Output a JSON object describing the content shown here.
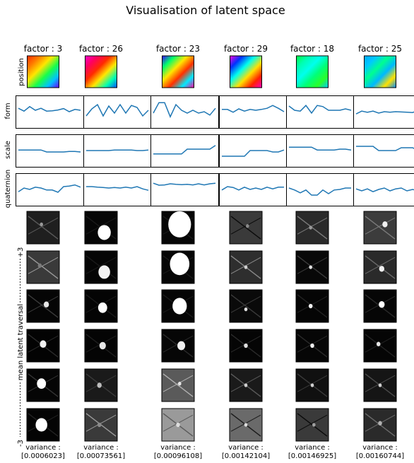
{
  "chart_data": {
    "type": "line",
    "title": "Visualisation of latent space",
    "columns": [
      {
        "factor_label": "factor : 3",
        "variance_label": "variance :",
        "variance_value": "[0.0006023]"
      },
      {
        "factor_label": "factor : 26",
        "variance_label": "variance :",
        "variance_value": "[0.00073561]"
      },
      {
        "factor_label": "factor : 23",
        "variance_label": "variance :",
        "variance_value": "[0.00096108]"
      },
      {
        "factor_label": "factor : 29",
        "variance_label": "variance :",
        "variance_value": "[0.00142104]"
      },
      {
        "factor_label": "factor : 18",
        "variance_label": "variance :",
        "variance_value": "[0.00146925]"
      },
      {
        "factor_label": "factor : 25",
        "variance_label": "variance :",
        "variance_value": "[0.00160744]"
      }
    ],
    "row_labels": {
      "position": "position",
      "form": "form",
      "scale": "scale",
      "quaternion": "quaternion"
    },
    "traversal": {
      "plus": "+3",
      "minus": "-3",
      "label": "mean latent traversal"
    },
    "line_color": "#1f77b4",
    "line_ylim": [
      0,
      1
    ],
    "form_series": [
      [
        0.62,
        0.52,
        0.68,
        0.55,
        0.62,
        0.52,
        0.53,
        0.56,
        0.61,
        0.5,
        0.58,
        0.55
      ],
      [
        0.35,
        0.6,
        0.75,
        0.35,
        0.7,
        0.45,
        0.75,
        0.45,
        0.72,
        0.65,
        0.35,
        0.55
      ],
      [
        0.45,
        0.82,
        0.82,
        0.32,
        0.75,
        0.55,
        0.45,
        0.55,
        0.45,
        0.5,
        0.38,
        0.62
      ],
      [
        0.58,
        0.58,
        0.48,
        0.6,
        0.52,
        0.58,
        0.55,
        0.58,
        0.62,
        0.72,
        0.62,
        0.5
      ],
      [
        0.7,
        0.55,
        0.52,
        0.72,
        0.45,
        0.72,
        0.68,
        0.55,
        0.55,
        0.55,
        0.6,
        0.55
      ],
      [
        0.42,
        0.52,
        0.48,
        0.52,
        0.45,
        0.5,
        0.48,
        0.5,
        0.49,
        0.48,
        0.47,
        0.55
      ]
    ],
    "scale_series": [
      [
        0.52,
        0.52,
        0.52,
        0.52,
        0.52,
        0.45,
        0.45,
        0.45,
        0.45,
        0.47,
        0.47,
        0.45
      ],
      [
        0.5,
        0.5,
        0.5,
        0.5,
        0.5,
        0.52,
        0.52,
        0.52,
        0.52,
        0.5,
        0.5,
        0.52
      ],
      [
        0.38,
        0.38,
        0.38,
        0.38,
        0.38,
        0.38,
        0.55,
        0.55,
        0.55,
        0.55,
        0.55,
        0.68
      ],
      [
        0.3,
        0.3,
        0.3,
        0.3,
        0.3,
        0.5,
        0.5,
        0.5,
        0.5,
        0.45,
        0.45,
        0.52
      ],
      [
        0.62,
        0.62,
        0.62,
        0.62,
        0.62,
        0.52,
        0.52,
        0.52,
        0.52,
        0.55,
        0.55,
        0.52
      ],
      [
        0.65,
        0.65,
        0.65,
        0.65,
        0.5,
        0.5,
        0.5,
        0.5,
        0.6,
        0.6,
        0.6,
        0.5
      ]
    ],
    "quaternion_series": [
      [
        0.42,
        0.55,
        0.5,
        0.58,
        0.55,
        0.48,
        0.48,
        0.4,
        0.6,
        0.62,
        0.66,
        0.58
      ],
      [
        0.6,
        0.6,
        0.58,
        0.57,
        0.55,
        0.57,
        0.55,
        0.58,
        0.55,
        0.6,
        0.52,
        0.47
      ],
      [
        0.72,
        0.65,
        0.66,
        0.7,
        0.68,
        0.67,
        0.68,
        0.66,
        0.7,
        0.66,
        0.7,
        0.72
      ],
      [
        0.48,
        0.6,
        0.57,
        0.48,
        0.58,
        0.5,
        0.55,
        0.5,
        0.58,
        0.52,
        0.58,
        0.58
      ],
      [
        0.55,
        0.48,
        0.38,
        0.48,
        0.3,
        0.3,
        0.48,
        0.35,
        0.48,
        0.5,
        0.55,
        0.55
      ],
      [
        0.52,
        0.45,
        0.52,
        0.42,
        0.5,
        0.55,
        0.45,
        0.52,
        0.55,
        0.45,
        0.5,
        0.45
      ]
    ],
    "position_maps": [
      [
        "#ff2a00",
        "#ff7a00",
        "#ffe600",
        "#18ff4a",
        "#00c2ff",
        "#6a00ff"
      ],
      [
        "#ff00d0",
        "#ff0060",
        "#ff2a00",
        "#ffe600",
        "#00ffb0",
        "#0050ff"
      ],
      [
        "#3a00ff",
        "#00ff6a",
        "#ffe600",
        "#ff3000",
        "#00eaff",
        "#ff00a0"
      ],
      [
        "#ff00e0",
        "#0030ff",
        "#00ffee",
        "#ffe000",
        "#ff2000",
        "#ff00c0"
      ],
      [
        "#00ff40",
        "#00ffb0",
        "#00ffee",
        "#00ff7a",
        "#2aff2a",
        "#00c8ff"
      ],
      [
        "#00aaff",
        "#00c8ff",
        "#00ff90",
        "#00b8ff",
        "#ffe000",
        "#008aff"
      ]
    ],
    "traversal_images": [
      [
        {
          "bg": "#1f1f1f",
          "blob": "#9a9a9a",
          "blob_r": 0.05,
          "cx": 0.45,
          "cy": 0.4,
          "streak": "#5a5a5a"
        },
        {
          "bg": "#3a3a3a",
          "blob": "#7c7c7c",
          "blob_r": 0.06,
          "cx": 0.4,
          "cy": 0.45,
          "streak": "#9a9a9a"
        },
        {
          "bg": "#050505",
          "blob": "#e6e6e6",
          "blob_r": 0.08,
          "cx": 0.6,
          "cy": 0.45,
          "streak": "#3a3a3a"
        },
        {
          "bg": "#030303",
          "blob": "#f2f2f2",
          "blob_r": 0.1,
          "cx": 0.5,
          "cy": 0.45,
          "streak": "#2a2a2a"
        },
        {
          "bg": "#050505",
          "blob": "#ffffff",
          "blob_r": 0.14,
          "cx": 0.45,
          "cy": 0.45,
          "streak": "#333333"
        },
        {
          "bg": "#040404",
          "blob": "#ffffff",
          "blob_r": 0.18,
          "cx": 0.45,
          "cy": 0.5,
          "streak": "#222222"
        }
      ],
      [
        {
          "bg": "#060606",
          "blob": "#ffffff",
          "blob_r": 0.2,
          "cx": 0.6,
          "cy": 0.65,
          "streak": "#1a1a1a"
        },
        {
          "bg": "#050505",
          "blob": "#f2f2f2",
          "blob_r": 0.18,
          "cx": 0.6,
          "cy": 0.65,
          "streak": "#1a1a1a"
        },
        {
          "bg": "#040404",
          "blob": "#ffffff",
          "blob_r": 0.14,
          "cx": 0.55,
          "cy": 0.55,
          "streak": "#1a1a1a"
        },
        {
          "bg": "#040404",
          "blob": "#e6e6e6",
          "blob_r": 0.1,
          "cx": 0.55,
          "cy": 0.5,
          "streak": "#1e1e1e"
        },
        {
          "bg": "#1a1a1a",
          "blob": "#bdbdbd",
          "blob_r": 0.07,
          "cx": 0.45,
          "cy": 0.5,
          "streak": "#3a3a3a"
        },
        {
          "bg": "#3a3a3a",
          "blob": "#8a8a8a",
          "blob_r": 0.06,
          "cx": 0.45,
          "cy": 0.5,
          "streak": "#9a9a9a"
        }
      ],
      [
        {
          "bg": "#060606",
          "blob": "#ffffff",
          "blob_r": 0.35,
          "cx": 0.55,
          "cy": 0.4,
          "streak": "#1a1a1a"
        },
        {
          "bg": "#060606",
          "blob": "#ffffff",
          "blob_r": 0.3,
          "cx": 0.55,
          "cy": 0.4,
          "streak": "#1a1a1a"
        },
        {
          "bg": "#050505",
          "blob": "#ffffff",
          "blob_r": 0.22,
          "cx": 0.55,
          "cy": 0.5,
          "streak": "#1a1a1a"
        },
        {
          "bg": "#060606",
          "blob": "#f0f0f0",
          "blob_r": 0.12,
          "cx": 0.6,
          "cy": 0.5,
          "streak": "#2a2a2a"
        },
        {
          "bg": "#5a5a5a",
          "blob": "#e6e6e6",
          "blob_r": 0.05,
          "cx": 0.55,
          "cy": 0.45,
          "streak": "#b0b0b0"
        },
        {
          "bg": "#9a9a9a",
          "blob": "#dcdcdc",
          "blob_r": 0.06,
          "cx": 0.5,
          "cy": 0.5,
          "streak": "#5a5a5a"
        }
      ],
      [
        {
          "bg": "#3a3a3a",
          "blob": "#8a8a8a",
          "blob_r": 0.05,
          "cx": 0.55,
          "cy": 0.45,
          "streak": "#0a0a0a"
        },
        {
          "bg": "#2e2e2e",
          "blob": "#d0d0d0",
          "blob_r": 0.05,
          "cx": 0.5,
          "cy": 0.5,
          "streak": "#8a8a8a"
        },
        {
          "bg": "#0a0a0a",
          "blob": "#e0e0e0",
          "blob_r": 0.05,
          "cx": 0.5,
          "cy": 0.6,
          "streak": "#3a3a3a"
        },
        {
          "bg": "#050505",
          "blob": "#e0e0e0",
          "blob_r": 0.06,
          "cx": 0.5,
          "cy": 0.5,
          "streak": "#2a2a2a"
        },
        {
          "bg": "#1a1a1a",
          "blob": "#d0d0d0",
          "blob_r": 0.05,
          "cx": 0.5,
          "cy": 0.5,
          "streak": "#5a5a5a"
        },
        {
          "bg": "#6a6a6a",
          "blob": "#dcdcdc",
          "blob_r": 0.05,
          "cx": 0.5,
          "cy": 0.5,
          "streak": "#1a1a1a"
        }
      ],
      [
        {
          "bg": "#2a2a2a",
          "blob": "#9a9a9a",
          "blob_r": 0.05,
          "cx": 0.45,
          "cy": 0.5,
          "streak": "#7a7a7a"
        },
        {
          "bg": "#080808",
          "blob": "#e0e0e0",
          "blob_r": 0.05,
          "cx": 0.45,
          "cy": 0.5,
          "streak": "#3a3a3a"
        },
        {
          "bg": "#050505",
          "blob": "#f0f0f0",
          "blob_r": 0.06,
          "cx": 0.45,
          "cy": 0.5,
          "streak": "#222222"
        },
        {
          "bg": "#060606",
          "blob": "#f0f0f0",
          "blob_r": 0.06,
          "cx": 0.5,
          "cy": 0.5,
          "streak": "#2a2a2a"
        },
        {
          "bg": "#101010",
          "blob": "#d0d0d0",
          "blob_r": 0.05,
          "cx": 0.5,
          "cy": 0.5,
          "streak": "#3a3a3a"
        },
        {
          "bg": "#3a3a3a",
          "blob": "#a0a0a0",
          "blob_r": 0.05,
          "cx": 0.55,
          "cy": 0.5,
          "streak": "#0a0a0a"
        }
      ],
      [
        {
          "bg": "#3c3c3c",
          "blob": "#f0f0f0",
          "blob_r": 0.08,
          "cx": 0.65,
          "cy": 0.4,
          "streak": "#7a7a7a"
        },
        {
          "bg": "#2a2a2a",
          "blob": "#f0f0f0",
          "blob_r": 0.08,
          "cx": 0.55,
          "cy": 0.55,
          "streak": "#6a6a6a"
        },
        {
          "bg": "#060606",
          "blob": "#ffffff",
          "blob_r": 0.09,
          "cx": 0.55,
          "cy": 0.45,
          "streak": "#2a2a2a"
        },
        {
          "bg": "#050505",
          "blob": "#e6e6e6",
          "blob_r": 0.06,
          "cx": 0.45,
          "cy": 0.45,
          "streak": "#222222"
        },
        {
          "bg": "#151515",
          "blob": "#d0d0d0",
          "blob_r": 0.05,
          "cx": 0.5,
          "cy": 0.5,
          "streak": "#4a4a4a"
        },
        {
          "bg": "#2a2a2a",
          "blob": "#b0b0b0",
          "blob_r": 0.06,
          "cx": 0.5,
          "cy": 0.45,
          "streak": "#6a6a6a"
        }
      ]
    ]
  }
}
